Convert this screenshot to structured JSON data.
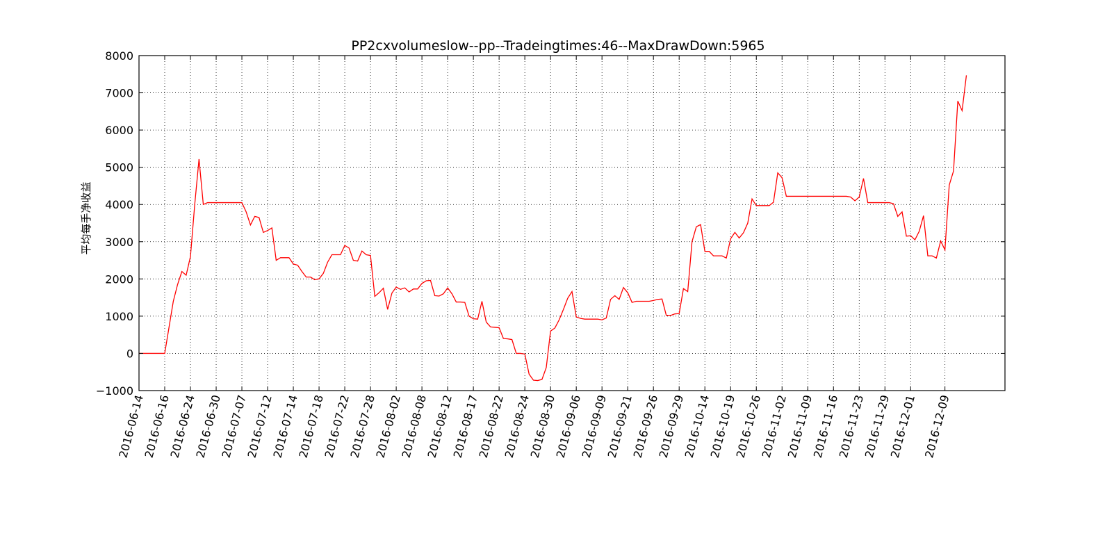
{
  "chart_data": {
    "type": "line",
    "title": "PP2cxvolumeslow--pp--Tradeingtimes:46--MaxDrawDown:5965",
    "xlabel": "",
    "ylabel": "平均每手净收益",
    "ylim": [
      -1000,
      8000
    ],
    "yticks": [
      -1000,
      0,
      1000,
      2000,
      3000,
      4000,
      5000,
      6000,
      7000,
      8000
    ],
    "grid": true,
    "line_color": "#ff0000",
    "x_tick_labels": [
      "2016-06-14",
      "2016-06-16",
      "2016-06-24",
      "2016-06-30",
      "2016-07-07",
      "2016-07-12",
      "2016-07-14",
      "2016-07-18",
      "2016-07-22",
      "2016-07-28",
      "2016-08-02",
      "2016-08-08",
      "2016-08-12",
      "2016-08-17",
      "2016-08-22",
      "2016-08-24",
      "2016-08-30",
      "2016-09-06",
      "2016-09-09",
      "2016-09-21",
      "2016-09-26",
      "2016-09-29",
      "2016-10-14",
      "2016-10-19",
      "2016-10-26",
      "2016-11-02",
      "2016-11-09",
      "2016-11-16",
      "2016-11-23",
      "2016-11-29",
      "2016-12-01",
      "2016-12-09"
    ],
    "x_tick_positions": [
      0,
      6,
      12,
      18,
      24,
      30,
      36,
      42,
      48,
      54,
      60,
      66,
      72,
      78,
      84,
      90,
      96,
      102,
      108,
      114,
      120,
      126,
      132,
      138,
      144,
      150,
      156,
      162,
      168,
      174,
      180,
      188
    ],
    "x_max": 202,
    "series": [
      {
        "values": [
          0,
          0,
          0,
          0,
          0,
          0,
          0,
          700,
          1400,
          1850,
          2200,
          2100,
          2600,
          4000,
          5220,
          4000,
          4050,
          4050,
          4050,
          4050,
          4050,
          4050,
          4050,
          4050,
          4050,
          3800,
          3450,
          3680,
          3650,
          3250,
          3300,
          3370,
          2500,
          2570,
          2570,
          2570,
          2400,
          2370,
          2200,
          2050,
          2050,
          1980,
          2000,
          2150,
          2450,
          2650,
          2650,
          2650,
          2900,
          2830,
          2500,
          2480,
          2750,
          2650,
          2630,
          1530,
          1630,
          1750,
          1180,
          1620,
          1780,
          1720,
          1760,
          1650,
          1730,
          1730,
          1880,
          1950,
          1960,
          1550,
          1540,
          1600,
          1760,
          1600,
          1380,
          1380,
          1370,
          1000,
          930,
          920,
          1400,
          840,
          710,
          700,
          690,
          400,
          390,
          370,
          0,
          0,
          -20,
          -560,
          -720,
          -730,
          -700,
          -380,
          600,
          680,
          900,
          1180,
          1480,
          1660,
          980,
          940,
          920,
          920,
          920,
          920,
          900,
          950,
          1450,
          1550,
          1450,
          1770,
          1630,
          1370,
          1400,
          1400,
          1400,
          1400,
          1420,
          1450,
          1460,
          1020,
          1020,
          1060,
          1070,
          1740,
          1660,
          3000,
          3400,
          3460,
          2740,
          2740,
          2620,
          2620,
          2620,
          2560,
          3080,
          3250,
          3100,
          3240,
          3500,
          4150,
          3970,
          3970,
          3970,
          3970,
          4060,
          4850,
          4720,
          4220,
          4220,
          4220,
          4220,
          4220,
          4220,
          4220,
          4220,
          4220,
          4220,
          4220,
          4220,
          4220,
          4220,
          4220,
          4200,
          4100,
          4200,
          4700,
          4050,
          4050,
          4050,
          4050,
          4050,
          4050,
          4020,
          3680,
          3800,
          3150,
          3160,
          3050,
          3280,
          3700,
          2620,
          2620,
          2560,
          3020,
          2780,
          4520,
          4900,
          6780,
          6520,
          7470
        ]
      }
    ]
  }
}
